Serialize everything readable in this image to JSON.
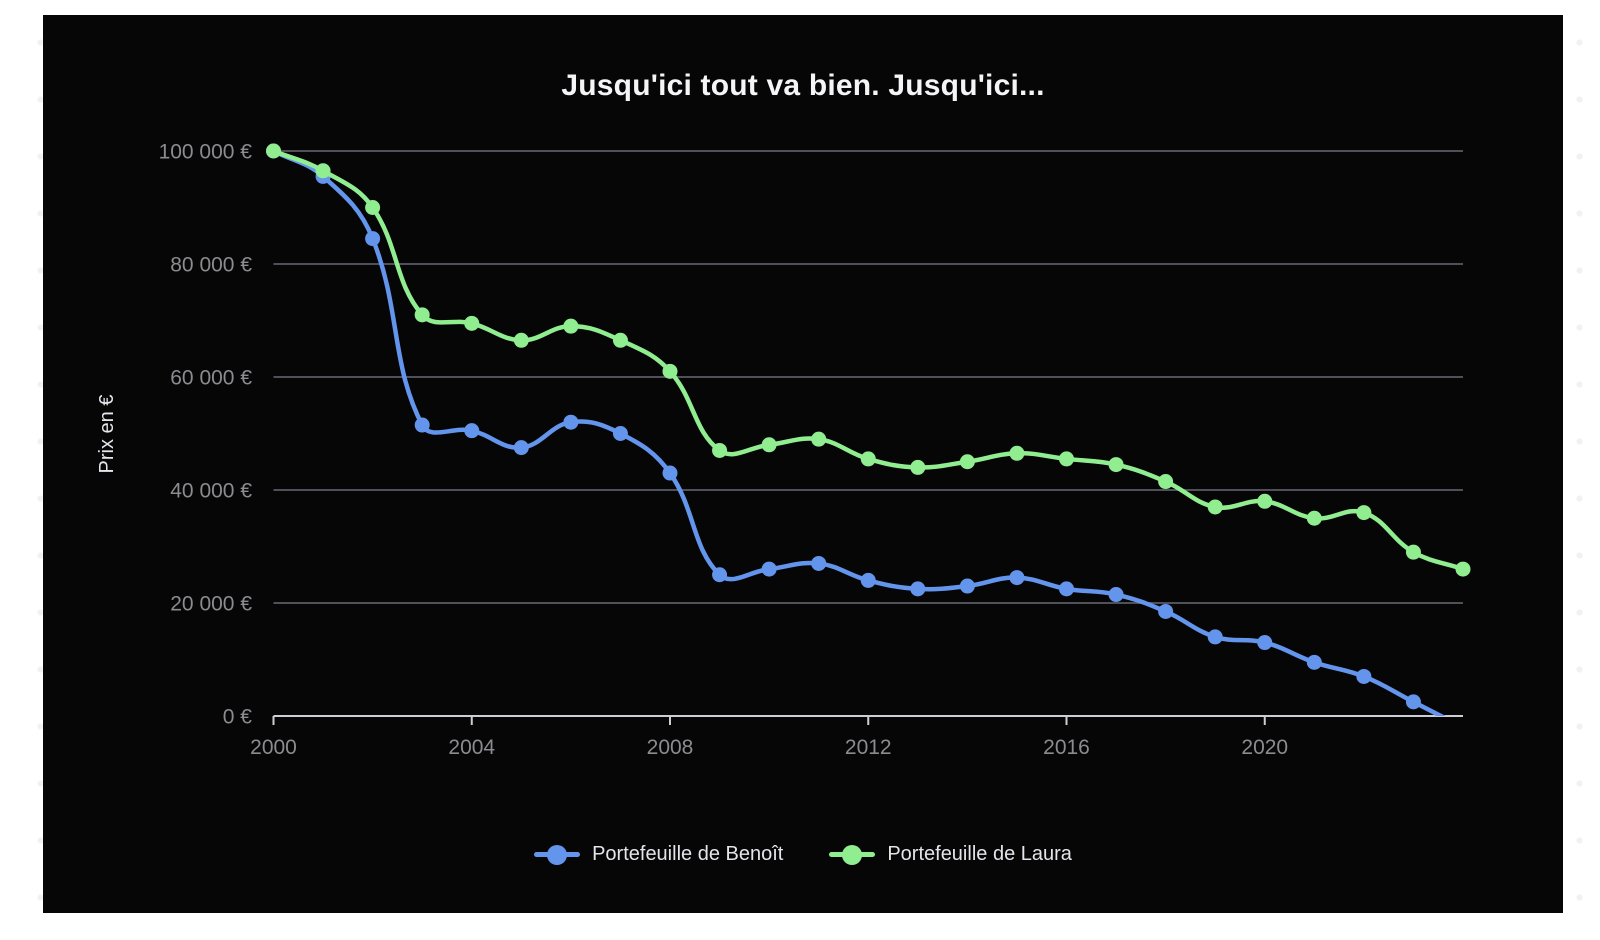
{
  "chart_data": {
    "type": "line",
    "title": "Jusqu'ici tout va bien. Jusqu'ici...",
    "xlabel": "",
    "ylabel": "Prix en €",
    "xlim": [
      2000,
      2024
    ],
    "ylim": [
      0,
      100000
    ],
    "grid": "horizontal",
    "legend_position": "bottom-center",
    "x": [
      2000,
      2001,
      2002,
      2003,
      2004,
      2005,
      2006,
      2007,
      2008,
      2009,
      2010,
      2011,
      2012,
      2013,
      2014,
      2015,
      2016,
      2017,
      2018,
      2019,
      2020,
      2021,
      2022,
      2023,
      2024
    ],
    "x_ticks": [
      {
        "value": 2000,
        "label": "2000"
      },
      {
        "value": 2004,
        "label": "2004"
      },
      {
        "value": 2008,
        "label": "2008"
      },
      {
        "value": 2012,
        "label": "2012"
      },
      {
        "value": 2016,
        "label": "2016"
      },
      {
        "value": 2020,
        "label": "2020"
      }
    ],
    "y_ticks": [
      {
        "value": 0,
        "label": "0 €"
      },
      {
        "value": 20000,
        "label": "20 000 €"
      },
      {
        "value": 40000,
        "label": "40 000 €"
      },
      {
        "value": 60000,
        "label": "60 000 €"
      },
      {
        "value": 80000,
        "label": "80 000 €"
      },
      {
        "value": 100000,
        "label": "100 000 €"
      }
    ],
    "series": [
      {
        "name": "Portefeuille de Benoît",
        "color": "#6495ed",
        "values": [
          100000,
          95500,
          84500,
          51500,
          50500,
          47500,
          52000,
          50000,
          43000,
          25000,
          26000,
          27000,
          24000,
          22500,
          23000,
          24500,
          22500,
          21500,
          18500,
          14000,
          13000,
          9500,
          7000,
          2500,
          -2000
        ]
      },
      {
        "name": "Portefeuille de Laura",
        "color": "#90ee90",
        "values": [
          100000,
          96500,
          90000,
          71000,
          69500,
          66500,
          69000,
          66500,
          61000,
          47000,
          48000,
          49000,
          45500,
          44000,
          45000,
          46500,
          45500,
          44500,
          41500,
          37000,
          38000,
          35000,
          36000,
          29000,
          26000
        ]
      }
    ]
  },
  "style": {
    "card_bg": "#060606",
    "title_color": "#f5f5f7",
    "tick_label_color": "#8b8b90",
    "grid_color": "#50505a",
    "axis_color": "#cdcdd5",
    "ylabel_color": "#e6e6ec",
    "legend_text_color": "#e4e4ea"
  }
}
